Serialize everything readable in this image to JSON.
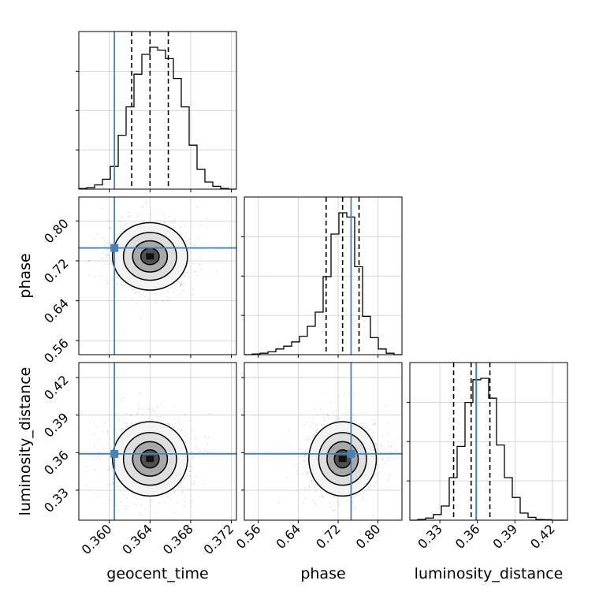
{
  "chart_data": {
    "type": "corner",
    "parameters": [
      "geocent_time",
      "phase",
      "luminosity_distance"
    ],
    "truths": [
      0.3605,
      0.746,
      0.359
    ],
    "truth_color": "#4682b4",
    "ranges": [
      [
        0.357,
        0.3725
      ],
      [
        0.532,
        0.848
      ],
      [
        0.306,
        0.432
      ]
    ],
    "ticks": [
      {
        "values": [
          0.36,
          0.364,
          0.368,
          0.372
        ],
        "labels": [
          "0.360",
          "0.364",
          "0.368",
          "0.372"
        ]
      },
      {
        "values": [
          0.56,
          0.64,
          0.72,
          0.8
        ],
        "labels": [
          "0.56",
          "0.64",
          "0.72",
          "0.80"
        ]
      },
      {
        "values": [
          0.33,
          0.36,
          0.39,
          0.42
        ],
        "labels": [
          "0.33",
          "0.36",
          "0.39",
          "0.42"
        ]
      }
    ],
    "quantiles": [
      [
        0.3622,
        0.364,
        0.3658
      ],
      [
        0.696,
        0.729,
        0.762
      ],
      [
        0.341,
        0.355,
        0.37
      ]
    ],
    "histograms": [
      [
        0.005,
        0.01,
        0.03,
        0.07,
        0.16,
        0.38,
        0.58,
        0.81,
        0.95,
        1.0,
        0.98,
        0.92,
        0.78,
        0.58,
        0.31,
        0.14,
        0.05,
        0.02,
        0.005,
        0
      ],
      [
        0,
        0.005,
        0.01,
        0.02,
        0.04,
        0.06,
        0.09,
        0.13,
        0.2,
        0.3,
        0.55,
        0.85,
        1.0,
        0.97,
        0.62,
        0.27,
        0.12,
        0.04,
        0.01,
        0
      ],
      [
        0,
        0.005,
        0.015,
        0.04,
        0.1,
        0.3,
        0.52,
        0.83,
        0.99,
        1.0,
        0.86,
        0.53,
        0.3,
        0.16,
        0.05,
        0.02,
        0.005,
        0.003,
        0,
        0
      ]
    ],
    "joint_centers": {
      "phase_vs_geocent_time": [
        0.364,
        0.729
      ],
      "luminosity_distance_vs_geocent_time": [
        0.364,
        0.355
      ],
      "luminosity_distance_vs_phase": [
        0.729,
        0.355
      ]
    },
    "grid": true
  }
}
